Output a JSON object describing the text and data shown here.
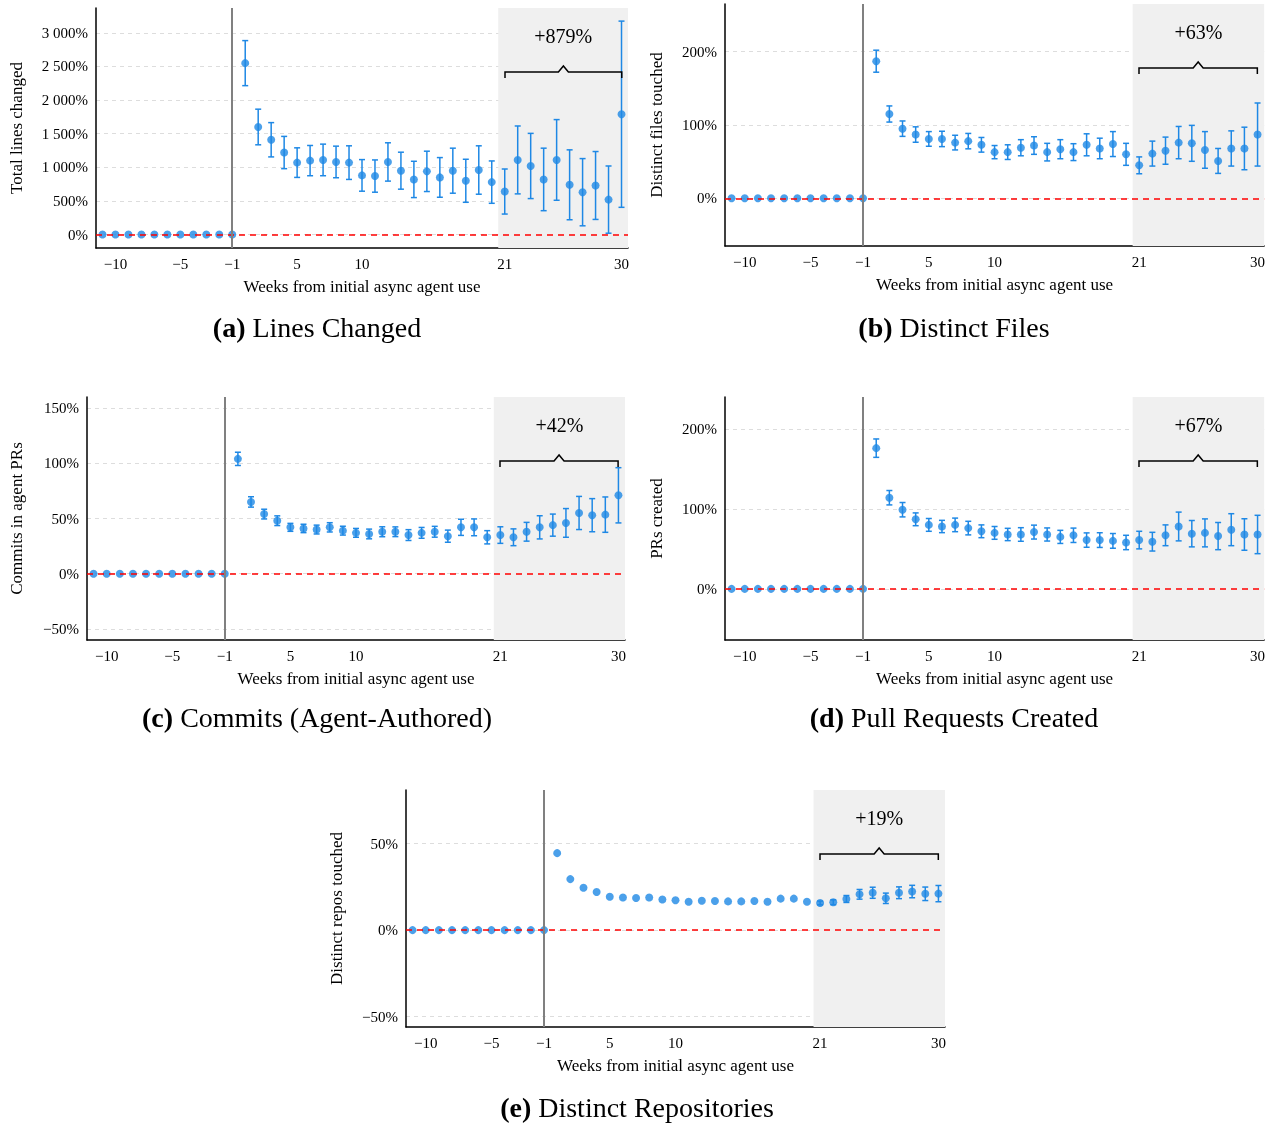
{
  "chart_data": [
    {
      "type": "scatter",
      "title": "(a) Lines Changed",
      "xlabel": "Weeks from initial async agent use",
      "ylabel": "Total lines changed",
      "color": "#1e88e5",
      "marker": "circle",
      "grid": "y",
      "categories": [
        null,
        "−10",
        null,
        null,
        null,
        null,
        "−5",
        null,
        null,
        null,
        "−1",
        null,
        null,
        null,
        null,
        "5",
        null,
        null,
        null,
        null,
        "10",
        null,
        null,
        null,
        null,
        null,
        null,
        null,
        null,
        null,
        null,
        "21",
        null,
        null,
        null,
        null,
        null,
        null,
        null,
        null,
        "30"
      ],
      "values": [
        0,
        0,
        0,
        0,
        0,
        0,
        0,
        0,
        0,
        0,
        0,
        2550,
        1600,
        1410,
        1220,
        1070,
        1100,
        1110,
        1080,
        1070,
        880,
        870,
        1080,
        950,
        820,
        940,
        850,
        950,
        800,
        960,
        780,
        640,
        1110,
        1020,
        820,
        1110,
        740,
        630,
        730,
        520,
        1790
      ],
      "errors": [
        null,
        null,
        null,
        null,
        null,
        null,
        null,
        null,
        null,
        null,
        null,
        335,
        265,
        255,
        240,
        220,
        225,
        235,
        235,
        250,
        235,
        240,
        285,
        275,
        270,
        300,
        295,
        335,
        320,
        360,
        315,
        335,
        505,
        485,
        465,
        600,
        520,
        500,
        505,
        500,
        1385
      ],
      "ylim": [
        -200,
        3370
      ],
      "yticks": [
        {
          "value": 0,
          "label": "0%"
        },
        {
          "value": 500,
          "label": "500%"
        },
        {
          "value": 1000,
          "label": "1 000%"
        },
        {
          "value": 1500,
          "label": "1 500%"
        },
        {
          "value": 2000,
          "label": "2 000%"
        },
        {
          "value": 2500,
          "label": "2 500%"
        },
        {
          "value": 3000,
          "label": "3 000%"
        }
      ],
      "ref_lines": [
        {
          "axis": "y",
          "value": 0,
          "color": "#ff0000",
          "line_style": "dashed"
        },
        {
          "axis": "x",
          "value": "−1",
          "color": "#808080"
        }
      ],
      "bands": [
        {
          "axis": "x",
          "from": "21",
          "to": "30",
          "color": "#f0f0f0"
        }
      ],
      "annotations": [
        "+879%"
      ]
    },
    {
      "type": "scatter",
      "title": "(b) Distinct Files",
      "xlabel": "Weeks from initial async agent use",
      "ylabel": "Distinct files touched",
      "color": "#1e88e5",
      "marker": "circle",
      "grid": "y",
      "categories": [
        null,
        "−10",
        null,
        null,
        null,
        null,
        "−5",
        null,
        null,
        null,
        "−1",
        null,
        null,
        null,
        null,
        "5",
        null,
        null,
        null,
        null,
        "10",
        null,
        null,
        null,
        null,
        null,
        null,
        null,
        null,
        null,
        null,
        "21",
        null,
        null,
        null,
        null,
        null,
        null,
        null,
        null,
        "30"
      ],
      "values": [
        0,
        0,
        0,
        0,
        0,
        0,
        0,
        0,
        0,
        0,
        0,
        187,
        115,
        95,
        87,
        81,
        81,
        76,
        78,
        73,
        63,
        63,
        69,
        72,
        63,
        67,
        63,
        73,
        68,
        74,
        60,
        45,
        61,
        65,
        76,
        75,
        66,
        51,
        68,
        68,
        87
      ],
      "errors": [
        null,
        null,
        null,
        null,
        null,
        null,
        null,
        null,
        null,
        null,
        null,
        15,
        11,
        10.5,
        10.5,
        10,
        10.5,
        10,
        10.5,
        10,
        9,
        10,
        11,
        12,
        12,
        13,
        11.5,
        15,
        14,
        17,
        15,
        11.5,
        17,
        18.5,
        22,
        24.5,
        25,
        17,
        24,
        29,
        43
      ],
      "ylim": [
        -65,
        265
      ],
      "yticks": [
        {
          "value": 0,
          "label": "0%"
        },
        {
          "value": 100,
          "label": "100%"
        },
        {
          "value": 200,
          "label": "200%"
        }
      ],
      "ref_lines": [
        {
          "axis": "y",
          "value": 0,
          "color": "#ff0000",
          "line_style": "dashed"
        },
        {
          "axis": "x",
          "value": "−1",
          "color": "#808080"
        }
      ],
      "bands": [
        {
          "axis": "x",
          "from": "21",
          "to": "30",
          "color": "#f0f0f0"
        }
      ],
      "annotations": [
        "+63%"
      ]
    },
    {
      "type": "scatter",
      "title": "(c) Commits (Agent-Authored)",
      "xlabel": "Weeks from initial async agent use",
      "ylabel": "Commits in agent PRs",
      "color": "#1e88e5",
      "marker": "circle",
      "grid": "y",
      "categories": [
        null,
        "−10",
        null,
        null,
        null,
        null,
        "−5",
        null,
        null,
        null,
        "−1",
        null,
        null,
        null,
        null,
        "5",
        null,
        null,
        null,
        null,
        "10",
        null,
        null,
        null,
        null,
        null,
        null,
        null,
        null,
        null,
        null,
        "21",
        null,
        null,
        null,
        null,
        null,
        null,
        null,
        null,
        "30"
      ],
      "values": [
        0,
        0,
        0,
        0,
        0,
        0,
        0,
        0,
        0,
        0,
        0,
        104,
        65,
        54,
        48,
        42,
        41,
        40,
        42,
        39,
        37,
        36,
        38,
        38,
        35,
        37,
        38,
        34,
        42,
        42,
        33,
        35,
        33,
        38,
        42,
        44,
        46,
        55,
        53,
        53.5,
        71
      ],
      "errors": [
        null,
        null,
        null,
        null,
        null,
        null,
        null,
        null,
        null,
        null,
        null,
        6,
        4.7,
        4.4,
        4.4,
        3.6,
        3.8,
        4,
        4.2,
        4,
        4,
        4.4,
        4.5,
        4.4,
        4.9,
        4.9,
        4.9,
        5.5,
        7.3,
        7.6,
        6,
        7.5,
        7.6,
        8.5,
        10.5,
        10,
        13,
        15,
        15,
        16,
        25
      ],
      "ylim": [
        -60,
        160
      ],
      "yticks": [
        {
          "value": -50,
          "label": "−50%"
        },
        {
          "value": 0,
          "label": "0%"
        },
        {
          "value": 50,
          "label": "50%"
        },
        {
          "value": 100,
          "label": "100%"
        },
        {
          "value": 150,
          "label": "150%"
        }
      ],
      "ref_lines": [
        {
          "axis": "y",
          "value": 0,
          "color": "#ff0000",
          "line_style": "dashed"
        },
        {
          "axis": "x",
          "value": "−1",
          "color": "#808080"
        }
      ],
      "bands": [
        {
          "axis": "x",
          "from": "21",
          "to": "30",
          "color": "#f0f0f0"
        }
      ],
      "annotations": [
        "+42%"
      ]
    },
    {
      "type": "scatter",
      "title": "(d) Pull Requests Created",
      "xlabel": "Weeks from initial async agent use",
      "ylabel": "PRs created",
      "color": "#1e88e5",
      "marker": "circle",
      "grid": "y",
      "categories": [
        null,
        "−10",
        null,
        null,
        null,
        null,
        "−5",
        null,
        null,
        null,
        "−1",
        null,
        null,
        null,
        null,
        "5",
        null,
        null,
        null,
        null,
        "10",
        null,
        null,
        null,
        null,
        null,
        null,
        null,
        null,
        null,
        null,
        "21",
        null,
        null,
        null,
        null,
        null,
        null,
        null,
        null,
        "30"
      ],
      "values": [
        0,
        0,
        0,
        0,
        0,
        0,
        0,
        0,
        0,
        0,
        0,
        176,
        114,
        99,
        87,
        80,
        78,
        80,
        76,
        72,
        70,
        68,
        68,
        71,
        68,
        65,
        67,
        61,
        61,
        60,
        58,
        61,
        59,
        67,
        78,
        69,
        70,
        66,
        74,
        68,
        68
      ],
      "errors": [
        null,
        null,
        null,
        null,
        null,
        null,
        null,
        null,
        null,
        null,
        null,
        11.5,
        9,
        9,
        8,
        8,
        7.7,
        8.5,
        8.5,
        8,
        8,
        7.7,
        8.5,
        8.7,
        8.2,
        8.2,
        9,
        9,
        9.2,
        9.2,
        9,
        11,
        11.7,
        13,
        18,
        16.5,
        17.5,
        17,
        20,
        19.7,
        24
      ],
      "ylim": [
        -64,
        240
      ],
      "yticks": [
        {
          "value": 0,
          "label": "0%"
        },
        {
          "value": 100,
          "label": "100%"
        },
        {
          "value": 200,
          "label": "200%"
        }
      ],
      "ref_lines": [
        {
          "axis": "y",
          "value": 0,
          "color": "#ff0000",
          "line_style": "dashed"
        },
        {
          "axis": "x",
          "value": "−1",
          "color": "#808080"
        }
      ],
      "bands": [
        {
          "axis": "x",
          "from": "21",
          "to": "30",
          "color": "#f0f0f0"
        }
      ],
      "annotations": [
        "+67%"
      ]
    },
    {
      "type": "scatter",
      "title": "(e) Distinct Repositories",
      "xlabel": "Weeks from initial async agent use",
      "ylabel": "Distinct repos touched",
      "color": "#1e88e5",
      "marker": "circle",
      "grid": "y",
      "categories": [
        null,
        "−10",
        null,
        null,
        null,
        null,
        "−5",
        null,
        null,
        null,
        "−1",
        null,
        null,
        null,
        null,
        "5",
        null,
        null,
        null,
        null,
        "10",
        null,
        null,
        null,
        null,
        null,
        null,
        null,
        null,
        null,
        null,
        "21",
        null,
        null,
        null,
        null,
        null,
        null,
        null,
        null,
        "30"
      ],
      "values": [
        0,
        0,
        0,
        0,
        0,
        0,
        0,
        0,
        0,
        0,
        0,
        44.5,
        29.5,
        24.5,
        22,
        19.3,
        18.9,
        18.6,
        18.9,
        17.7,
        17.3,
        16.4,
        17,
        16.8,
        16.6,
        16.6,
        16.8,
        16.4,
        18.2,
        18.2,
        16.4,
        15.7,
        16.1,
        18,
        20.7,
        21.6,
        18.4,
        21.6,
        22.3,
        21,
        21.1
      ],
      "errors": [
        null,
        null,
        null,
        null,
        null,
        null,
        null,
        null,
        null,
        null,
        null,
        null,
        null,
        null,
        null,
        null,
        null,
        null,
        null,
        null,
        null,
        null,
        null,
        null,
        null,
        null,
        null,
        null,
        null,
        null,
        null,
        1.1,
        1.4,
        2,
        2.8,
        3.2,
        3,
        3.4,
        3.6,
        3.9,
        4.7
      ],
      "ylim": [
        -56,
        81
      ],
      "yticks": [
        {
          "value": -50,
          "label": "−50%"
        },
        {
          "value": 0,
          "label": "0%"
        },
        {
          "value": 50,
          "label": "50%"
        }
      ],
      "ref_lines": [
        {
          "axis": "y",
          "value": 0,
          "color": "#ff0000",
          "line_style": "dashed"
        },
        {
          "axis": "x",
          "value": "−1",
          "color": "#808080"
        }
      ],
      "bands": [
        {
          "axis": "x",
          "from": "21",
          "to": "30",
          "color": "#f0f0f0"
        }
      ],
      "annotations": [
        "+19%"
      ]
    }
  ]
}
